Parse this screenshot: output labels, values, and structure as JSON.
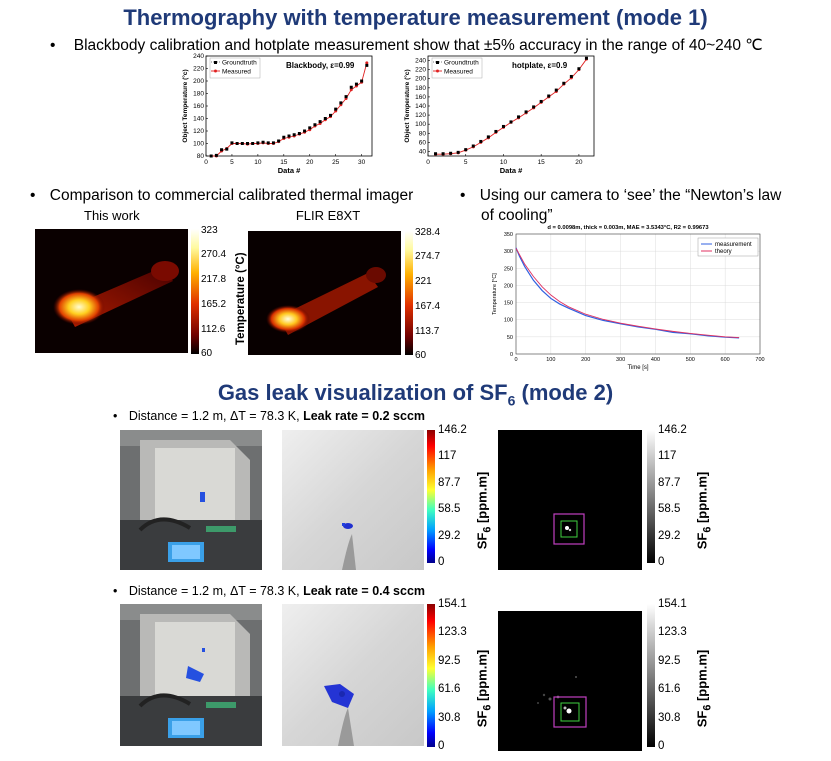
{
  "title1": "Thermography with temperature measurement (mode 1)",
  "bullet_calibration": "Blackbody calibration and hotplate measurement show that ±5% accuracy in the range of 40~240 ℃",
  "chart_data": [
    {
      "type": "scatter",
      "title": "Blackbody, ε=0.99",
      "xlabel": "Data #",
      "ylabel": "Object Temperature (°c)",
      "xlim": [
        0,
        32
      ],
      "ylim": [
        80,
        240
      ],
      "xticks": [
        "0",
        "5",
        "10",
        "15",
        "20",
        "25",
        "30"
      ],
      "yticks": [
        "80",
        "100",
        "120",
        "140",
        "160",
        "180",
        "200",
        "220",
        "240"
      ],
      "legend": "top-left",
      "series": [
        {
          "name": "Groundtruth",
          "x": [
            1,
            2,
            3,
            4,
            5,
            6,
            7,
            8,
            9,
            10,
            11,
            12,
            13,
            14,
            15,
            16,
            17,
            18,
            19,
            20,
            21,
            22,
            23,
            24,
            25,
            26,
            27,
            28,
            29,
            30,
            31
          ],
          "values": [
            80,
            81,
            90,
            91,
            101,
            100,
            100,
            100,
            100,
            101,
            102,
            101,
            101,
            104,
            110,
            112,
            114,
            116,
            120,
            125,
            130,
            135,
            140,
            145,
            155,
            165,
            175,
            190,
            195,
            200,
            225
          ]
        },
        {
          "name": "Measured",
          "x": [
            1,
            2,
            3,
            4,
            5,
            6,
            7,
            8,
            9,
            10,
            11,
            12,
            13,
            14,
            15,
            16,
            17,
            18,
            19,
            20,
            21,
            22,
            23,
            24,
            25,
            26,
            27,
            28,
            29,
            30,
            31
          ],
          "values": [
            80,
            80,
            88,
            92,
            100,
            100,
            100,
            99,
            100,
            100,
            101,
            100,
            100,
            103,
            108,
            110,
            112,
            115,
            118,
            122,
            128,
            132,
            138,
            143,
            152,
            162,
            172,
            186,
            192,
            198,
            229
          ]
        }
      ]
    },
    {
      "type": "scatter",
      "title": "hotplate, ε=0.9",
      "xlabel": "Data #",
      "ylabel": "Object Temperature (°c)",
      "xlim": [
        0,
        22
      ],
      "ylim": [
        30,
        250
      ],
      "xticks": [
        "0",
        "5",
        "10",
        "15",
        "20"
      ],
      "yticks": [
        "40",
        "60",
        "80",
        "100",
        "120",
        "140",
        "160",
        "180",
        "200",
        "220",
        "240"
      ],
      "legend": "top-left",
      "series": [
        {
          "name": "Groundtruth",
          "x": [
            1,
            2,
            3,
            4,
            5,
            6,
            7,
            8,
            9,
            10,
            11,
            12,
            13,
            14,
            15,
            16,
            17,
            18,
            19,
            20,
            21
          ],
          "values": [
            35,
            35,
            36,
            38,
            44,
            52,
            62,
            72,
            84,
            95,
            105,
            116,
            127,
            138,
            150,
            162,
            175,
            190,
            205,
            222,
            245
          ]
        },
        {
          "name": "Measured",
          "x": [
            1,
            2,
            3,
            4,
            5,
            6,
            7,
            8,
            9,
            10,
            11,
            12,
            13,
            14,
            15,
            16,
            17,
            18,
            19,
            20,
            21
          ],
          "values": [
            34,
            34,
            35,
            37,
            43,
            50,
            60,
            70,
            82,
            93,
            104,
            114,
            125,
            136,
            148,
            160,
            172,
            188,
            202,
            220,
            243
          ]
        }
      ]
    },
    {
      "type": "line",
      "title": "d = 0.0098m, thick = 0.003m, MAE = 3.5343°C, R2 = 0.99673",
      "xlabel": "Time [s]",
      "ylabel": "Temperature [°C]",
      "xlim": [
        0,
        700
      ],
      "ylim": [
        0,
        350
      ],
      "xticks": [
        "0",
        "100",
        "200",
        "300",
        "400",
        "500",
        "600",
        "700"
      ],
      "yticks": [
        "0",
        "50",
        "100",
        "150",
        "200",
        "250",
        "300",
        "350"
      ],
      "legend": "top-right",
      "series": [
        {
          "name": "measurement",
          "x": [
            0,
            10,
            25,
            50,
            75,
            100,
            125,
            150,
            200,
            250,
            300,
            350,
            400,
            450,
            500,
            550,
            600,
            640
          ],
          "values": [
            310,
            285,
            255,
            215,
            185,
            162,
            146,
            134,
            112,
            98,
            88,
            79,
            72,
            63,
            59,
            53,
            49,
            47
          ]
        },
        {
          "name": "theory",
          "x": [
            0,
            10,
            25,
            50,
            75,
            100,
            125,
            150,
            200,
            250,
            300,
            350,
            400,
            450,
            500,
            550,
            600,
            640
          ],
          "values": [
            308,
            290,
            262,
            226,
            196,
            172,
            153,
            138,
            116,
            101,
            90,
            81,
            73,
            66,
            60,
            55,
            50,
            48
          ]
        }
      ]
    }
  ],
  "bullet_compare": "Comparison to commercial calibrated thermal imager",
  "caption_this_work": "This work",
  "caption_flir": "FLIR E8XT",
  "cbar_this": [
    "323",
    "270.4",
    "217.8",
    "165.2",
    "112.6",
    "60"
  ],
  "cbar_flir": [
    "328.4",
    "274.7",
    "221",
    "167.4",
    "113.7",
    "60"
  ],
  "cbar_temp_label": "Temperature (°C)",
  "bullet_newton_1": "Using our camera to ‘see’ the “Newton’s law",
  "bullet_newton_2": "of cooling”",
  "title2_main": "Gas leak visualization of SF",
  "title2_sub": "6",
  "title2_tail": " (mode 2)",
  "leak1_prefix": "Distance = 1.2 m, ΔT = 78.3 K, ",
  "leak1_bold": "Leak rate = 0.2 sccm",
  "leak2_prefix": "Distance = 1.2 m, ΔT = 78.3 K, ",
  "leak2_bold": "Leak rate = 0.4 sccm",
  "cbar_jet1": [
    "146.2",
    "117",
    "87.7",
    "58.5",
    "29.2",
    "0"
  ],
  "cbar_gray1": [
    "146.2",
    "117",
    "87.7",
    "58.5",
    "29.2",
    "0"
  ],
  "cbar_jet2": [
    "154.1",
    "123.3",
    "92.5",
    "61.6",
    "30.8",
    "0"
  ],
  "cbar_gray2": [
    "154.1",
    "123.3",
    "92.5",
    "61.6",
    "30.8",
    "0"
  ],
  "sf6_label": "SF",
  "sf6_sub": "6",
  "sf6_unit": " [ppm.m]",
  "bullet_char": "•"
}
